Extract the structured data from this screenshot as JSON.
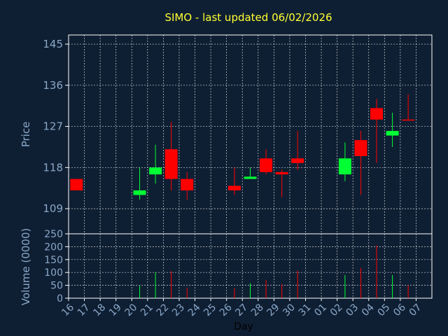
{
  "title": "SIMO - last updated 06/02/2026",
  "colors": {
    "background": "#0f1f33",
    "up": "#00ff33",
    "down": "#ff0000",
    "grid": "#ffffff",
    "text": "#8aa8c8",
    "title": "#ffff33"
  },
  "chart_data": [
    {
      "type": "candlestick",
      "ylabel": "Price",
      "ylim": [
        103.5,
        147
      ],
      "yticks": [
        109,
        118,
        127,
        136,
        145
      ],
      "grid": true,
      "x": [
        "16",
        "17",
        "18",
        "19",
        "20",
        "21",
        "22",
        "23",
        "24",
        "25",
        "26",
        "27",
        "28",
        "29",
        "30",
        "31",
        "01",
        "02",
        "03",
        "04",
        "05",
        "06",
        "07"
      ],
      "candles": [
        {
          "x": "16",
          "open": 115.5,
          "close": 113,
          "high": 115.5,
          "low": 113
        },
        {
          "x": "20",
          "open": 112,
          "close": 113,
          "high": 118,
          "low": 111
        },
        {
          "x": "21",
          "open": 116.5,
          "close": 118,
          "high": 123,
          "low": 114.5
        },
        {
          "x": "22",
          "open": 122,
          "close": 115.5,
          "high": 128,
          "low": 113
        },
        {
          "x": "23",
          "open": 115.5,
          "close": 113,
          "high": 117,
          "low": 111
        },
        {
          "x": "26",
          "open": 114,
          "close": 113,
          "high": 118,
          "low": 112
        },
        {
          "x": "27",
          "open": 115.5,
          "close": 116,
          "high": 118,
          "low": 115.5
        },
        {
          "x": "28",
          "open": 120,
          "close": 117,
          "high": 122,
          "low": 116.5
        },
        {
          "x": "29",
          "open": 117,
          "close": 116.5,
          "high": 117.5,
          "low": 111.5
        },
        {
          "x": "30",
          "open": 120,
          "close": 119,
          "high": 126,
          "low": 117.5
        },
        {
          "x": "02",
          "open": 116.5,
          "close": 120,
          "high": 123.5,
          "low": 115
        },
        {
          "x": "03",
          "open": 124,
          "close": 120.5,
          "high": 126,
          "low": 112
        },
        {
          "x": "04",
          "open": 131,
          "close": 128.5,
          "high": 133,
          "low": 119
        },
        {
          "x": "05",
          "open": 125,
          "close": 126,
          "high": 130,
          "low": 122.5
        },
        {
          "x": "06",
          "open": 128.5,
          "close": 128.3,
          "high": 134,
          "low": 128.3
        }
      ]
    },
    {
      "type": "bar",
      "ylabel": "Volume (0000)",
      "ylim": [
        0,
        250
      ],
      "yticks": [
        0,
        50,
        100,
        150,
        200,
        250
      ],
      "xlabel": "Day",
      "x": [
        "16",
        "17",
        "18",
        "19",
        "20",
        "21",
        "22",
        "23",
        "24",
        "25",
        "26",
        "27",
        "28",
        "29",
        "30",
        "31",
        "01",
        "02",
        "03",
        "04",
        "05",
        "06",
        "07"
      ],
      "bars": [
        {
          "x": "20",
          "value": 48,
          "dir": "up"
        },
        {
          "x": "21",
          "value": 100,
          "dir": "up"
        },
        {
          "x": "22",
          "value": 105,
          "dir": "down"
        },
        {
          "x": "23",
          "value": 40,
          "dir": "down"
        },
        {
          "x": "26",
          "value": 38,
          "dir": "down"
        },
        {
          "x": "27",
          "value": 58,
          "dir": "up"
        },
        {
          "x": "28",
          "value": 70,
          "dir": "down"
        },
        {
          "x": "29",
          "value": 55,
          "dir": "down"
        },
        {
          "x": "30",
          "value": 108,
          "dir": "down"
        },
        {
          "x": "02",
          "value": 90,
          "dir": "up"
        },
        {
          "x": "03",
          "value": 118,
          "dir": "down"
        },
        {
          "x": "04",
          "value": 205,
          "dir": "down"
        },
        {
          "x": "05",
          "value": 90,
          "dir": "up"
        },
        {
          "x": "06",
          "value": 50,
          "dir": "down"
        }
      ]
    }
  ]
}
